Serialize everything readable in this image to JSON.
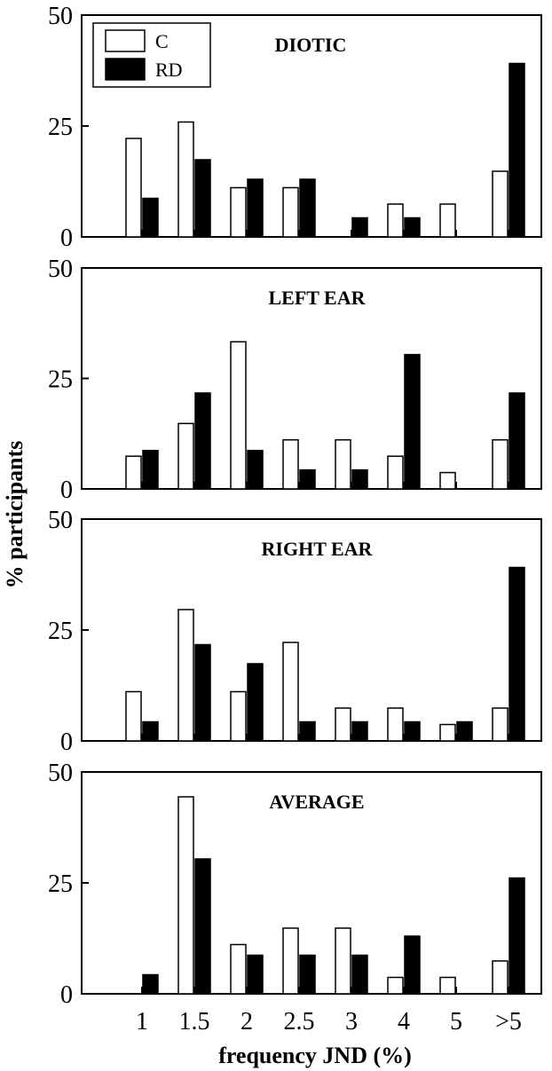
{
  "chart_data": {
    "type": "bar",
    "ylabel": "% participants",
    "xlabel": "frequency JND (%)",
    "ylim": [
      0,
      50
    ],
    "yticks": [
      "0",
      "25",
      "50"
    ],
    "categories": [
      "1",
      "1.5",
      "2",
      "2.5",
      "3",
      "4",
      "5",
      ">5"
    ],
    "legend": {
      "position": "top-left",
      "entries": [
        "C",
        "RD"
      ]
    },
    "series_colors": {
      "C": "#ffffff",
      "RD": "#000000"
    },
    "panels": [
      {
        "title": "DIOTIC",
        "series": [
          {
            "name": "C",
            "values": [
              22.2,
              25.9,
              11.1,
              11.1,
              0,
              7.4,
              7.4,
              14.8
            ]
          },
          {
            "name": "RD",
            "values": [
              8.7,
              17.4,
              13.0,
              13.0,
              4.3,
              4.3,
              0,
              39.1
            ]
          }
        ]
      },
      {
        "title": "LEFT EAR",
        "series": [
          {
            "name": "C",
            "values": [
              7.4,
              14.8,
              33.3,
              11.1,
              11.1,
              7.4,
              3.7,
              11.1
            ]
          },
          {
            "name": "RD",
            "values": [
              8.7,
              21.7,
              8.7,
              4.3,
              4.3,
              30.4,
              0,
              21.7
            ]
          }
        ]
      },
      {
        "title": "RIGHT EAR",
        "series": [
          {
            "name": "C",
            "values": [
              11.1,
              29.6,
              11.1,
              22.2,
              7.4,
              7.4,
              3.7,
              7.4
            ]
          },
          {
            "name": "RD",
            "values": [
              4.3,
              21.7,
              17.4,
              4.3,
              4.3,
              4.3,
              4.3,
              39.1
            ]
          }
        ]
      },
      {
        "title": "AVERAGE",
        "series": [
          {
            "name": "C",
            "values": [
              0,
              44.4,
              11.1,
              14.8,
              14.8,
              3.7,
              3.7,
              7.4
            ]
          },
          {
            "name": "RD",
            "values": [
              4.3,
              30.4,
              8.7,
              8.7,
              8.7,
              13.0,
              0,
              26.1
            ]
          }
        ]
      }
    ]
  }
}
